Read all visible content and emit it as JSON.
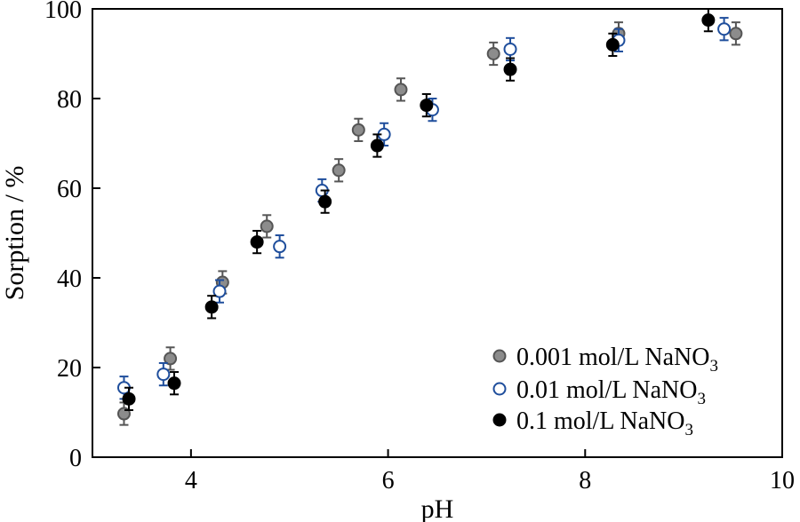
{
  "chart_data": {
    "type": "scatter",
    "title": "",
    "xlabel": "pH",
    "ylabel": "Sorption / %",
    "xlim": [
      3.0,
      10.0
    ],
    "ylim": [
      0,
      100
    ],
    "xticks": [
      4,
      6,
      8,
      10
    ],
    "yticks": [
      0,
      20,
      40,
      60,
      80,
      100
    ],
    "grid": false,
    "legend_position": "bottom-right",
    "series": [
      {
        "name": "0.001 mol/L NaNO3",
        "legend_main": "0.001 mol/L NaNO",
        "legend_sub": "3",
        "marker": "filled-circle",
        "fill": "#8c8c8c",
        "stroke": "#555555",
        "error_color": "#555555",
        "x": [
          3.32,
          3.79,
          4.32,
          4.77,
          5.5,
          5.7,
          6.13,
          7.07,
          8.34,
          9.53
        ],
        "y": [
          9.7,
          22.0,
          39.0,
          51.5,
          64.0,
          73.0,
          82.0,
          90.0,
          94.5,
          94.5
        ],
        "err": [
          2.5,
          2.5,
          2.5,
          2.5,
          2.5,
          2.5,
          2.5,
          2.5,
          2.5,
          2.5
        ]
      },
      {
        "name": "0.01 mol/L NaNO3",
        "legend_main": "0.01 mol/L NaNO",
        "legend_sub": "3",
        "marker": "open-circle",
        "fill": "#ffffff",
        "stroke": "#1f4e9c",
        "error_color": "#1f4e9c",
        "x": [
          3.32,
          3.72,
          4.29,
          4.9,
          5.33,
          5.96,
          6.45,
          7.24,
          8.34,
          9.41
        ],
        "y": [
          15.5,
          18.5,
          37.0,
          47.0,
          59.5,
          72.0,
          77.5,
          91.0,
          93.0,
          95.5
        ],
        "err": [
          2.5,
          2.5,
          2.5,
          2.5,
          2.5,
          2.5,
          2.5,
          2.5,
          2.5,
          2.5
        ]
      },
      {
        "name": "0.1 mol/L NaNO3",
        "legend_main": "0.1 mol/L NaNO",
        "legend_sub": "3",
        "marker": "filled-circle",
        "fill": "#000000",
        "stroke": "#000000",
        "error_color": "#000000",
        "x": [
          3.37,
          3.83,
          4.21,
          4.67,
          5.36,
          5.89,
          6.39,
          7.24,
          8.28,
          9.25
        ],
        "y": [
          13.0,
          16.5,
          33.5,
          48.0,
          57.0,
          69.5,
          78.5,
          86.5,
          92.0,
          97.5
        ],
        "err": [
          2.5,
          2.5,
          2.5,
          2.5,
          2.5,
          2.5,
          2.5,
          2.5,
          2.5,
          2.5
        ]
      }
    ]
  }
}
